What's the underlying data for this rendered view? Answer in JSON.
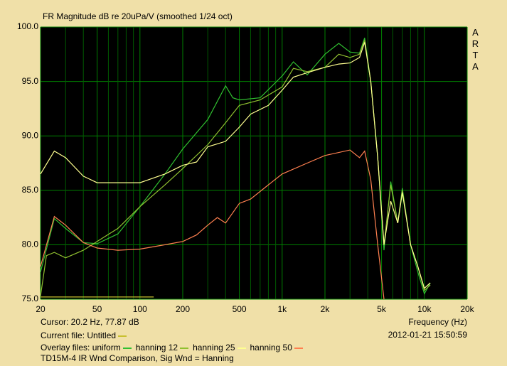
{
  "chart_data": {
    "type": "line",
    "title": "FR Magnitude dB re 20uPa/V (smoothed 1/24 oct)",
    "brand": "ARTA",
    "x_label": "Frequency (Hz)",
    "cursor": "Cursor: 20.2 Hz, 77.87 dB",
    "timestamp": "2012-01-21  15:50:59",
    "current_label": "Current file:",
    "overlay_label": "Overlay files:",
    "footer": "TD15M-4 IR Wnd Comparison, Sig Wnd = Hanning",
    "xscale": "log",
    "grid": true,
    "xlim": [
      20,
      20000
    ],
    "ylim": [
      75,
      100
    ],
    "xticks": [
      20,
      50,
      100,
      200,
      500,
      {
        "value": 1000,
        "label": "1k"
      },
      {
        "value": 2000,
        "label": "2k"
      },
      {
        "value": 5000,
        "label": "5k"
      },
      {
        "value": 10000,
        "label": "10k"
      },
      {
        "value": 20000,
        "label": "20k"
      }
    ],
    "xminorticks": [
      30,
      40,
      60,
      70,
      80,
      90,
      300,
      400,
      600,
      700,
      800,
      900,
      3000,
      4000,
      6000,
      7000,
      8000,
      9000
    ],
    "yticks": [
      {
        "value": 75,
        "label": "75.0"
      },
      {
        "value": 80,
        "label": "80.0"
      },
      {
        "value": 85,
        "label": "85.0"
      },
      {
        "value": 90,
        "label": "90.0"
      },
      {
        "value": 95,
        "label": "95.0"
      },
      {
        "value": 100,
        "label": "100.0"
      }
    ],
    "series": [
      {
        "name": "Untitled",
        "color": "#c8c030",
        "x": [
          20,
          125
        ],
        "values": [
          75.2,
          75.2
        ]
      },
      {
        "name": "uniform",
        "color": "#30c030",
        "x": [
          20,
          25,
          30,
          40,
          50,
          70,
          100,
          150,
          200,
          300,
          400,
          450,
          500,
          700,
          1000,
          1200,
          1500,
          2000,
          2500,
          3000,
          3500,
          3800,
          4200,
          4700,
          5200,
          5800,
          6500,
          7000,
          8000,
          9000,
          10000,
          11000
        ],
        "values": [
          77.5,
          82.4,
          81.5,
          80.2,
          80.1,
          81,
          83.5,
          86.5,
          88.8,
          91.5,
          94.6,
          93.5,
          93.3,
          93.5,
          95.5,
          96.8,
          95.6,
          97.5,
          98.5,
          97.7,
          97.6,
          99,
          95,
          88,
          79.5,
          85.8,
          82,
          85.2,
          80,
          77.5,
          75.5,
          76.5
        ]
      },
      {
        "name": "hanning 12",
        "color": "#90c030",
        "x": [
          20,
          22,
          25,
          30,
          40,
          50,
          70,
          100,
          150,
          200,
          300,
          400,
          500,
          700,
          1000,
          1200,
          1500,
          2000,
          2500,
          3000,
          3500,
          3800,
          4200,
          4700,
          5200,
          5800,
          6500,
          7000,
          8000,
          9000,
          10000,
          11000
        ],
        "values": [
          75.3,
          79,
          79.3,
          78.8,
          79.5,
          80.3,
          81.5,
          83.5,
          85.5,
          87,
          89.2,
          91.2,
          92.8,
          93.3,
          94.5,
          96.2,
          95.9,
          96.3,
          97.5,
          97.2,
          97.5,
          98.8,
          95,
          88,
          80,
          85.5,
          82,
          85,
          80,
          78,
          75.8,
          76.3
        ]
      },
      {
        "name": "hanning 25",
        "color": "#ffff90",
        "x": [
          20,
          25,
          30,
          40,
          50,
          100,
          150,
          200,
          250,
          300,
          400,
          500,
          600,
          800,
          1000,
          1200,
          1500,
          2000,
          2500,
          3000,
          3500,
          3800,
          4200,
          4700,
          5200,
          5800,
          6500,
          7000,
          8000,
          9000,
          10000,
          11000
        ],
        "values": [
          86.5,
          88.6,
          88,
          86.3,
          85.7,
          85.7,
          86.5,
          87.3,
          87.6,
          89,
          89.5,
          90.8,
          92,
          92.8,
          94.2,
          95.4,
          95.8,
          96.3,
          96.6,
          96.7,
          97.2,
          98.6,
          95,
          88,
          80,
          84,
          82,
          84.8,
          80,
          78,
          76,
          76.5
        ]
      },
      {
        "name": "hanning 50",
        "color": "#ff8050",
        "x": [
          20,
          25,
          30,
          40,
          50,
          70,
          100,
          150,
          200,
          250,
          300,
          350,
          400,
          500,
          600,
          800,
          1000,
          1500,
          2000,
          3000,
          3500,
          3800,
          4200,
          4700,
          5200
        ],
        "values": [
          78,
          82.6,
          81.8,
          80.2,
          79.7,
          79.5,
          79.6,
          80,
          80.3,
          80.9,
          81.8,
          82.5,
          82,
          83.8,
          84.2,
          85.5,
          86.5,
          87.5,
          88.2,
          88.7,
          88,
          88.6,
          86,
          80,
          75
        ]
      }
    ]
  }
}
